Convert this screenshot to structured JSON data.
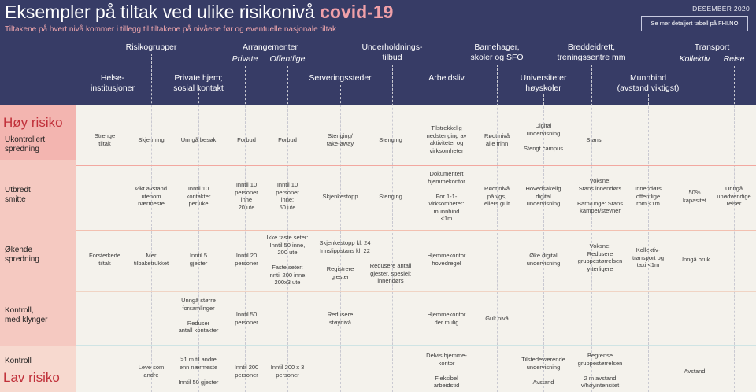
{
  "header": {
    "title_main": "Eksempler på tiltak ved ulike risikonivå ",
    "title_highlight": "covid-19",
    "subtitle": "Tiltakene på hvert nivå kommer i tillegg til tiltakene på nivåene før og eventuelle nasjonale tiltak",
    "date": "DESEMBER 2020",
    "link_label": "Se mer detaljert tabell på FHI.NO"
  },
  "columns": {
    "helse": [
      "Helse-",
      "institusjoner"
    ],
    "risikogrupper": "Risikogrupper",
    "private_hjem": [
      "Private hjem;",
      "sosial kontakt"
    ],
    "arrangementer": "Arrangementer",
    "arr_private": "Private",
    "arr_offentlige": "Offentlige",
    "serveringssteder": "Serveringssteder",
    "underholdning": [
      "Underholdnings-",
      "tilbud"
    ],
    "arbeidsliv": "Arbeidsliv",
    "barnehager": [
      "Barnehager,",
      "skoler og SFO"
    ],
    "universiteter": [
      "Universiteter",
      "høyskoler"
    ],
    "breddeidrett": [
      "Breddeidrett,",
      "treningssentre mm"
    ],
    "munnbind": [
      "Munnbind",
      "(avstand viktigst)"
    ],
    "transport": "Transport",
    "kollektiv": "Kollektiv",
    "reise": "Reise"
  },
  "risk": {
    "high": "Høy risiko",
    "low": "Lav risiko"
  },
  "rows": {
    "r1": "Ukontrollert\nspredning",
    "r2": "Utbredt\nsmitte",
    "r3": "Økende\nspredning",
    "r4": "Kontroll,\nmed klynger",
    "r5": "Kontroll"
  },
  "cells": {
    "r1_helse": "Strenge\ntiltak",
    "r1_risiko": "Skjerming",
    "r1_private": "Unngå besøk",
    "r1_arrpriv": "Forbud",
    "r1_arroff": "Forbud",
    "r1_serv": "Stenging/\ntake-away",
    "r1_underh": "Stenging",
    "r1_arbeid": "Tilstrekkelig\nnedstenging av\naktiviteter og\nvirksomheter",
    "r1_skoler": "Rødt nivå\nalle trinn",
    "r1_uni": "Digital\nundervisning\n\nStengt campus",
    "r1_idrett": "Stans",
    "r2_risiko": "Økt avstand\nutenom\nnærmeste",
    "r2_private": "Inntil 10\nkontakter\nper uke",
    "r2_arrpriv": "Inntil 10\npersoner\ninne\n20 ute",
    "r2_arroff": "Inntil 10\npersoner\ninne;\n50 ute",
    "r2_serv": "Skjenkestopp",
    "r2_underh": "Stenging",
    "r2_arbeid": "Dokumentert\nhjemmekontor\n\nFor 1-1-\nvirksomheter:\nmunnbind\n<1m",
    "r2_skoler": "Rødt nivå\npå vgs,\nellers gult",
    "r2_uni": "Hovedsakelig\ndigital\nundervisning",
    "r2_idrett": "Voksne:\nStans innendørs\n\nBarn/unge: Stans\nkamper/stevner",
    "r2_munnbind": "Innendørs\noffentlige\nrom <1m",
    "r2_kollektiv": "50%\nkapasitet",
    "r2_reise": "Unngå\nunødvendige\nreiser",
    "r3_helse": "Forsterkede\ntiltak",
    "r3_risiko": "Mer\ntilbaketrukket",
    "r3_private": "Inntil 5\ngjester",
    "r3_arrpriv": "Inntil 20\npersoner",
    "r3_arroff": "Ikke faste seter:\nInntil 50 inne,\n200 ute\n\nFaste seter:\nInntil 200 inne,\n200x3 ute",
    "r3_serv_a": "Skjenkestopp kl. 24\nInnslippstans kl. 22",
    "r3_serv_b": "Registrere\ngjester",
    "r3_underh": "Redusere antall\ngjester, spesielt\ninnendørs",
    "r3_arbeid": "Hjemmekontor\nhovedregel",
    "r3_uni": "Øke digital\nundervisning",
    "r3_idrett": "Voksne:\nRedusere\ngruppestørrelsen\nytterligere",
    "r3_munnbind": "Kollektiv-\ntransport og\ntaxi <1m",
    "r3_kollektiv": "Unngå bruk",
    "r4_private": "Unngå større\nforsamlinger\n\nReduser\nantall kontakter",
    "r4_arrpriv": "Inntil 50\npersoner",
    "r4_serv": "Redusere\nstøynivå",
    "r4_arbeid": "Hjemmekontor\nder mulig",
    "r4_skoler": "Gult nivå",
    "r5_risiko": "Leve som\nandre",
    "r5_private": ">1 m til andre\nenn nærmeste\n\nInntil 50 gjester",
    "r5_arrpriv": "Inntil 200\npersoner",
    "r5_arroff": "Inntil 200 x 3\npersoner",
    "r5_arbeid": "Delvis hjemme-\nkontor\n\nFleksibel\narbeidstid",
    "r5_uni": "Tilstedeværende\nundervisning\n\nAvstand",
    "r5_idrett": "Begrense\ngruppestørrelsen\n\n2 m avstand\nv/høyintensitet",
    "r5_kollektiv": "Avstand"
  }
}
